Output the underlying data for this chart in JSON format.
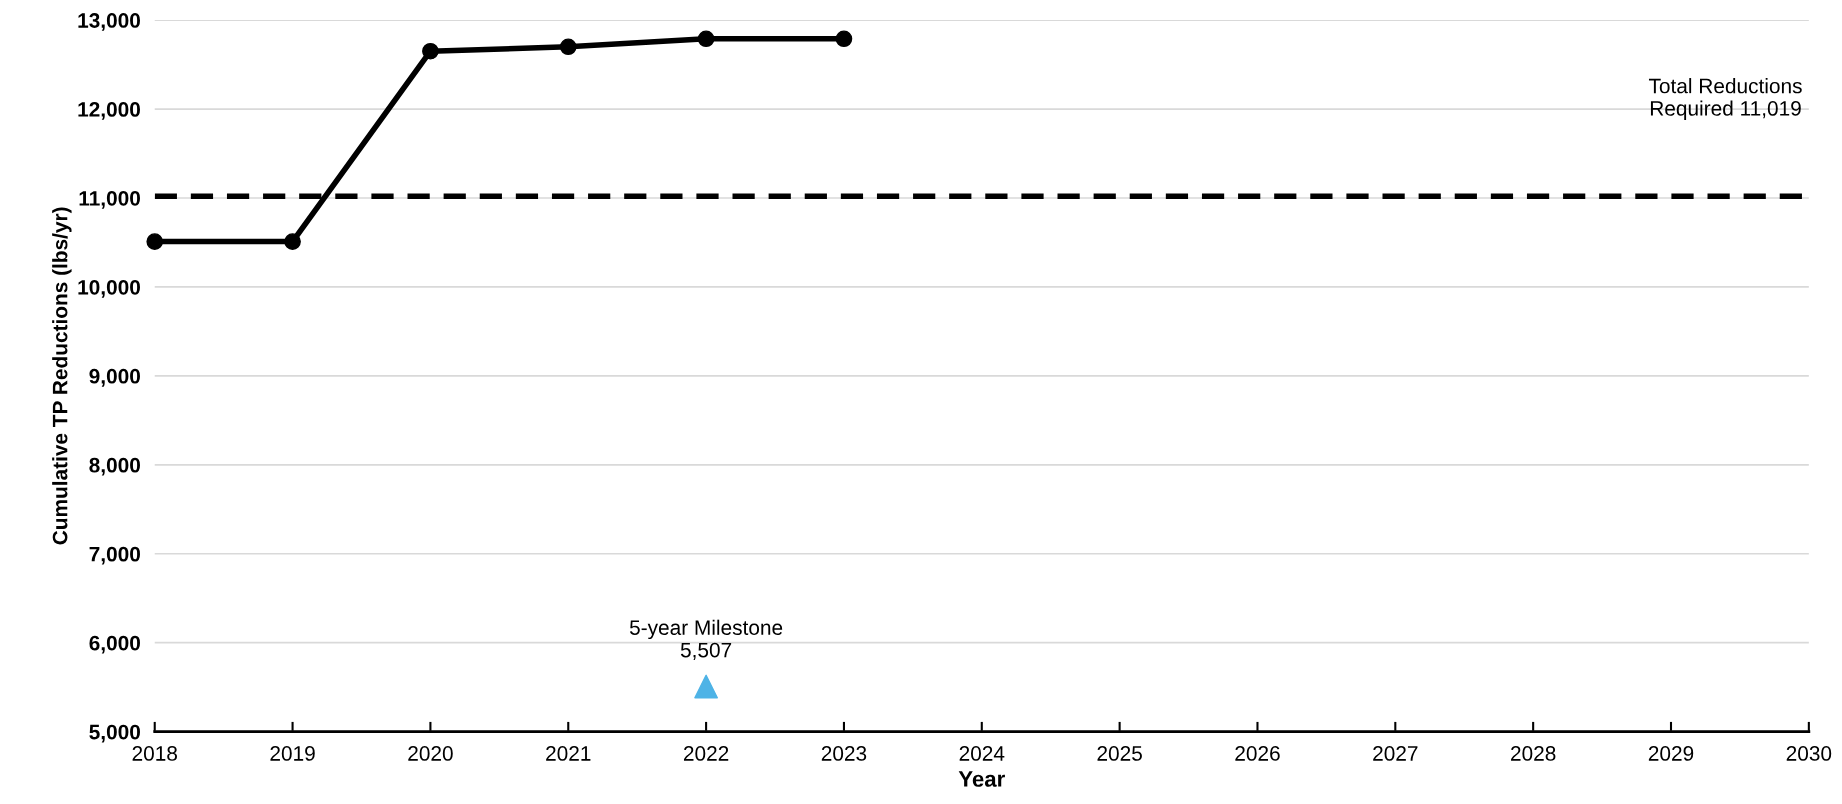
{
  "chart_data": {
    "type": "line",
    "xlabel": "Year",
    "ylabel": "Cumulative TP Reductions (lbs/yr)",
    "x": [
      2018,
      2019,
      2020,
      2021,
      2022,
      2023
    ],
    "series": [
      {
        "type": "line",
        "color": "#000000",
        "marker": "circle",
        "values": [
          10510,
          10510,
          12650,
          12700,
          12790,
          12790
        ]
      },
      {
        "type": "scatter",
        "color": "#4eb3e6",
        "marker": "triangle",
        "x": [
          2022
        ],
        "values": [
          5507
        ]
      }
    ],
    "ref_lines": [
      {
        "axis": "y",
        "value": 11019,
        "label": "Total Reductions\nRequired 11,019",
        "color": "#000000",
        "line_style": "dashed"
      }
    ],
    "annotations": [
      {
        "text": "5-year Milestone\n5,507",
        "x": 2022,
        "y": 5507
      }
    ],
    "xlim": [
      2018,
      2030
    ],
    "xticks": [
      2018,
      2019,
      2020,
      2021,
      2022,
      2023,
      2024,
      2025,
      2026,
      2027,
      2028,
      2029,
      2030
    ],
    "ylim": [
      5000,
      13000
    ],
    "yticks": [
      {
        "value": 5000,
        "label": "5,000"
      },
      {
        "value": 6000,
        "label": "6,000"
      },
      {
        "value": 7000,
        "label": "7,000"
      },
      {
        "value": 8000,
        "label": "8,000"
      },
      {
        "value": 9000,
        "label": "9,000"
      },
      {
        "value": 10000,
        "label": "10,000"
      },
      {
        "value": 11000,
        "label": "11,000"
      },
      {
        "value": 12000,
        "label": "12,000"
      },
      {
        "value": 13000,
        "label": "13,000"
      }
    ],
    "grid": "y"
  }
}
